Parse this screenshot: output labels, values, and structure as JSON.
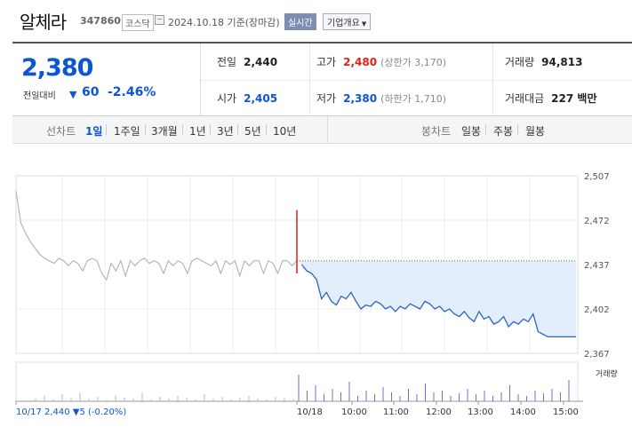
{
  "header": {
    "name": "알체라",
    "code": "347860",
    "market": "코스닥",
    "date": "2024.10.18 기준(장마감)",
    "realtime": "실시간",
    "company_info": "기업개요"
  },
  "summary": {
    "price": "2,380",
    "vs_label": "전일대비",
    "change": "60",
    "rate": "-2.46%",
    "prev_close_label": "전일",
    "prev_close": "2,440",
    "high_label": "고가",
    "high": "2,480",
    "upper_limit": "(상한가 3,170)",
    "volume_label": "거래량",
    "volume": "94,813",
    "open_label": "시가",
    "open": "2,405",
    "low_label": "저가",
    "low": "2,380",
    "lower_limit": "(하한가 1,710)",
    "amount_label": "거래대금",
    "amount": "227 백만"
  },
  "toolbar": {
    "line_chart": "선차트",
    "ranges": [
      "1일",
      "1주일",
      "3개월",
      "1년",
      "3년",
      "5년",
      "10년"
    ],
    "candle_chart": "봉차트",
    "candles": [
      "일봉",
      "주봉",
      "월봉"
    ]
  },
  "chart_data": {
    "type": "line",
    "y_ticks": [
      "2,507",
      "2,472",
      "2,437",
      "2,402",
      "2,367"
    ],
    "x_ticks": [
      "10/17",
      "10/18",
      "10:00",
      "11:00",
      "12:00",
      "13:00",
      "14:00",
      "15:00"
    ],
    "prev_day_footer": "10/17 2,440 ▼5 (-0.20%)",
    "volume_label": "거래량",
    "ylim": [
      2367,
      2507
    ],
    "prev_close": 2440,
    "prev_day_series": [
      2495,
      2470,
      2462,
      2455,
      2450,
      2445,
      2442,
      2440,
      2438,
      2442,
      2440,
      2436,
      2440,
      2438,
      2432,
      2440,
      2442,
      2440,
      2430,
      2425,
      2438,
      2432,
      2440,
      2428,
      2440,
      2436,
      2440,
      2442,
      2438,
      2440,
      2438,
      2430,
      2440,
      2436,
      2440,
      2438,
      2430,
      2440,
      2442,
      2440,
      2438,
      2436,
      2440,
      2430,
      2440,
      2437,
      2440,
      2428,
      2440,
      2436,
      2440,
      2440,
      2430,
      2440,
      2438,
      2430,
      2440,
      2440,
      2436,
      2440
    ],
    "today_series": [
      2480,
      2437,
      2432,
      2430,
      2425,
      2410,
      2415,
      2408,
      2405,
      2412,
      2410,
      2415,
      2408,
      2402,
      2405,
      2404,
      2408,
      2406,
      2402,
      2404,
      2400,
      2404,
      2402,
      2406,
      2404,
      2402,
      2408,
      2406,
      2402,
      2404,
      2400,
      2402,
      2398,
      2396,
      2400,
      2395,
      2392,
      2400,
      2394,
      2396,
      2390,
      2392,
      2396,
      2388,
      2392,
      2390,
      2394,
      2392,
      2398,
      2384,
      2382,
      2380,
      2380
    ]
  }
}
